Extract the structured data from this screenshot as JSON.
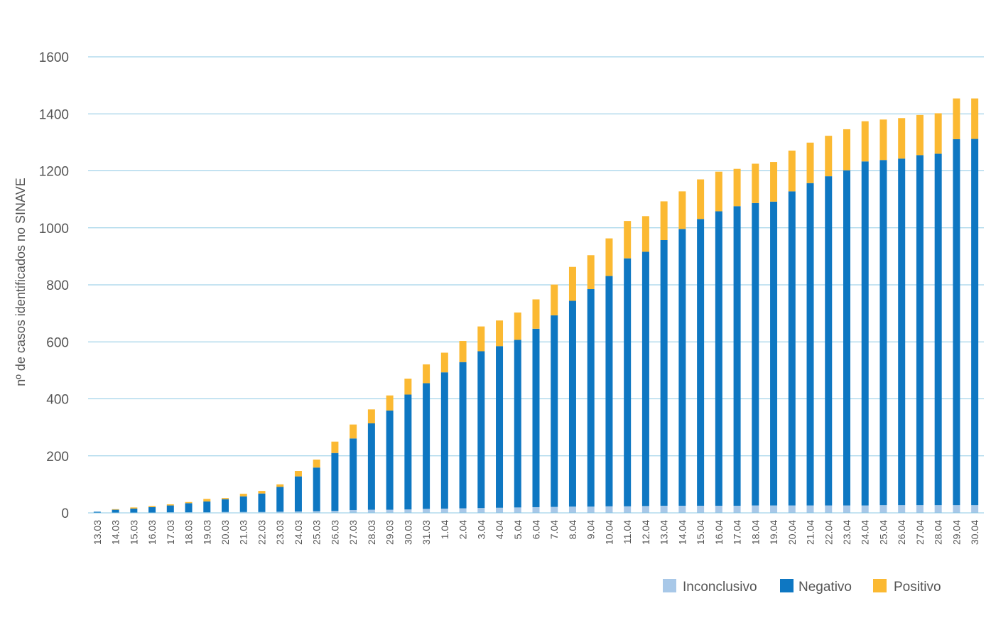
{
  "chart_data": {
    "type": "bar",
    "stacked": true,
    "title": "",
    "xlabel": "",
    "ylabel": "nº de casos identificados no SINAVE",
    "ylim": [
      0,
      1600
    ],
    "yticks": [
      0,
      200,
      400,
      600,
      800,
      1000,
      1200,
      1400,
      1600
    ],
    "grid": true,
    "legend_position": "bottom-right",
    "categories": [
      "13.03",
      "14.03",
      "15.03",
      "16.03",
      "17.03",
      "18.03",
      "19.03",
      "20.03",
      "21.03",
      "22.03",
      "23.03",
      "24.03",
      "25.03",
      "26.03",
      "27.03",
      "28.03",
      "29.03",
      "30.03",
      "31.03",
      "1.04",
      "2.04",
      "3.04",
      "4.04",
      "5.04",
      "6.04",
      "7.04",
      "8.04",
      "9.04",
      "10.04",
      "11.04",
      "12.04",
      "13.04",
      "14.04",
      "15.04",
      "16.04",
      "17.04",
      "18.04",
      "19.04",
      "20.04",
      "21.04",
      "22.04",
      "23.04",
      "24.04",
      "25.04",
      "26.04",
      "27.04",
      "28.04",
      "29.04",
      "30.04"
    ],
    "series": [
      {
        "name": "Inconclusivo",
        "color": "#a8c8e8",
        "values": [
          0,
          1,
          1,
          1,
          2,
          2,
          2,
          3,
          3,
          3,
          4,
          5,
          6,
          7,
          10,
          11,
          11,
          12,
          14,
          15,
          16,
          17,
          18,
          19,
          20,
          21,
          22,
          22,
          23,
          23,
          24,
          25,
          25,
          25,
          25,
          25,
          26,
          26,
          26,
          26,
          26,
          26,
          26,
          27,
          27,
          27,
          27,
          27,
          27
        ]
      },
      {
        "name": "Negativo",
        "color": "#0e77c2",
        "values": [
          4,
          10,
          14,
          19,
          24,
          32,
          38,
          45,
          55,
          65,
          87,
          123,
          153,
          203,
          251,
          303,
          348,
          403,
          441,
          478,
          513,
          550,
          567,
          588,
          626,
          672,
          722,
          763,
          808,
          870,
          892,
          932,
          971,
          1006,
          1033,
          1051,
          1061,
          1066,
          1102,
          1131,
          1155,
          1176,
          1207,
          1211,
          1216,
          1228,
          1233,
          1284,
          1285
        ]
      },
      {
        "name": "Positivo",
        "color": "#fbb932",
        "values": [
          0,
          2,
          4,
          4,
          4,
          4,
          9,
          4,
          9,
          9,
          9,
          19,
          28,
          40,
          49,
          49,
          53,
          56,
          66,
          69,
          74,
          87,
          90,
          96,
          103,
          108,
          119,
          119,
          132,
          131,
          125,
          136,
          132,
          139,
          139,
          131,
          138,
          139,
          143,
          142,
          142,
          144,
          141,
          142,
          142,
          141,
          142,
          143,
          142
        ]
      }
    ]
  }
}
